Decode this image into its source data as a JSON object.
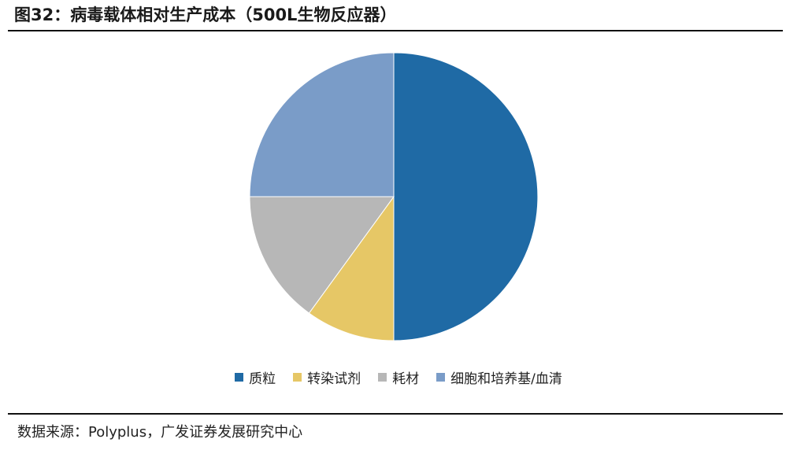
{
  "figure": {
    "title": "图32：病毒载体相对生产成本（500L生物反应器）",
    "source": "数据来源：Polyplus，广发证券发展研究中心"
  },
  "chart_data": {
    "type": "pie",
    "start_angle": "12 o'clock, clockwise",
    "legend_position": "bottom",
    "slices": [
      {
        "label": "质粒",
        "value": 50,
        "color": "#1F6AA5"
      },
      {
        "label": "转染试剂",
        "value": 10,
        "color": "#E6C766"
      },
      {
        "label": "耗材",
        "value": 15,
        "color": "#B7B7B7"
      },
      {
        "label": "细胞和培养基/血清",
        "value": 25,
        "color": "#7A9CC8"
      }
    ]
  }
}
